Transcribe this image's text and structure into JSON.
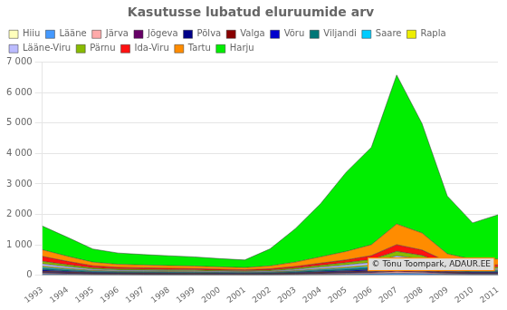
{
  "chart_data": {
    "type": "area",
    "title": "Kasutusse lubatud eluruumide arv",
    "stacked": true,
    "x": [
      1993,
      1994,
      1995,
      1996,
      1997,
      1998,
      1999,
      2000,
      2001,
      2002,
      2003,
      2004,
      2005,
      2006,
      2007,
      2008,
      2009,
      2010,
      2011
    ],
    "xlim": [
      1993,
      2011
    ],
    "xticks": [
      1993,
      1994,
      1995,
      1996,
      1997,
      1998,
      1999,
      2000,
      2001,
      2002,
      2003,
      2004,
      2005,
      2006,
      2007,
      2008,
      2009,
      2010,
      2011
    ],
    "ylim": [
      0,
      7000
    ],
    "yticks": [
      0,
      {
        "value": 1000,
        "label": "1 000"
      },
      {
        "value": 2000,
        "label": "2 000"
      },
      {
        "value": 3000,
        "label": "3 000"
      },
      {
        "value": 4000,
        "label": "4 000"
      },
      {
        "value": 5000,
        "label": "5 000"
      },
      {
        "value": 6000,
        "label": "6 000"
      },
      {
        "value": 7000,
        "label": "7 000"
      }
    ],
    "grid": "y",
    "legend": "upper left",
    "annotations": [
      "© Tõnu Toompark, ADAUR.EE"
    ],
    "series": [
      {
        "name": "Hiiu",
        "color": "#FFFFBB",
        "values": [
          9,
          7,
          5,
          5,
          4,
          4,
          4,
          4,
          4,
          4,
          6,
          7,
          9,
          11,
          14,
          11,
          7,
          6,
          6
        ]
      },
      {
        "name": "Lääne",
        "color": "#4499FF",
        "values": [
          32,
          24,
          16,
          14,
          13,
          12,
          11,
          10,
          9,
          11,
          15,
          21,
          27,
          34,
          52,
          43,
          24,
          17,
          17
        ]
      },
      {
        "name": "Järva",
        "color": "#FFAAAA",
        "values": [
          28,
          20,
          15,
          13,
          12,
          11,
          11,
          10,
          9,
          10,
          14,
          19,
          24,
          30,
          47,
          38,
          21,
          16,
          16
        ]
      },
      {
        "name": "Jõgeva",
        "color": "#660066",
        "values": [
          23,
          17,
          12,
          10,
          10,
          9,
          9,
          8,
          8,
          9,
          12,
          17,
          21,
          26,
          38,
          32,
          18,
          13,
          13
        ]
      },
      {
        "name": "Põlva",
        "color": "#000088",
        "values": [
          22,
          17,
          12,
          10,
          10,
          9,
          9,
          8,
          7,
          8,
          11,
          16,
          20,
          24,
          38,
          31,
          17,
          13,
          13
        ]
      },
      {
        "name": "Valga",
        "color": "#880000",
        "values": [
          26,
          19,
          14,
          11,
          11,
          10,
          10,
          9,
          8,
          9,
          12,
          17,
          22,
          27,
          42,
          35,
          19,
          14,
          14
        ]
      },
      {
        "name": "Võru",
        "color": "#0000CC",
        "values": [
          32,
          24,
          17,
          14,
          14,
          13,
          12,
          11,
          10,
          12,
          17,
          23,
          30,
          37,
          57,
          48,
          26,
          19,
          20
        ]
      },
      {
        "name": "Viljandi",
        "color": "#007777",
        "values": [
          50,
          38,
          26,
          22,
          21,
          20,
          19,
          17,
          16,
          18,
          25,
          36,
          46,
          58,
          88,
          75,
          40,
          30,
          30
        ]
      },
      {
        "name": "Saare",
        "color": "#00CCFF",
        "values": [
          42,
          32,
          22,
          19,
          18,
          17,
          16,
          14,
          13,
          15,
          21,
          30,
          38,
          48,
          72,
          60,
          32,
          25,
          25
        ]
      },
      {
        "name": "Rapla",
        "color": "#EEEE00",
        "values": [
          38,
          28,
          20,
          17,
          16,
          15,
          14,
          13,
          11,
          14,
          19,
          27,
          34,
          42,
          66,
          55,
          29,
          22,
          22
        ]
      },
      {
        "name": "Lääne-Viru",
        "color": "#BBBBFF",
        "values": [
          72,
          55,
          38,
          32,
          30,
          28,
          27,
          25,
          22,
          27,
          37,
          51,
          65,
          82,
          122,
          102,
          55,
          42,
          43
        ]
      },
      {
        "name": "Pärnu",
        "color": "#88BB00",
        "values": [
          85,
          64,
          44,
          37,
          35,
          33,
          31,
          28,
          26,
          32,
          43,
          60,
          76,
          95,
          148,
          124,
          66,
          49,
          50
        ]
      },
      {
        "name": "Ida-Viru",
        "color": "#FF1111",
        "values": [
          160,
          110,
          70,
          55,
          50,
          48,
          44,
          40,
          36,
          42,
          55,
          72,
          90,
          130,
          220,
          175,
          90,
          70,
          72
        ]
      },
      {
        "name": "Tartu",
        "color": "#FF8C00",
        "values": [
          220,
          170,
          120,
          100,
          95,
          90,
          85,
          78,
          72,
          95,
          145,
          210,
          280,
          360,
          680,
          560,
          260,
          185,
          195
        ]
      },
      {
        "name": "Harju",
        "color": "#00EE00",
        "values": [
          780,
          620,
          430,
          370,
          340,
          320,
          300,
          270,
          250,
          560,
          1100,
          1750,
          2600,
          3200,
          4900,
          3600,
          1900,
          1200,
          1450
        ]
      }
    ]
  }
}
